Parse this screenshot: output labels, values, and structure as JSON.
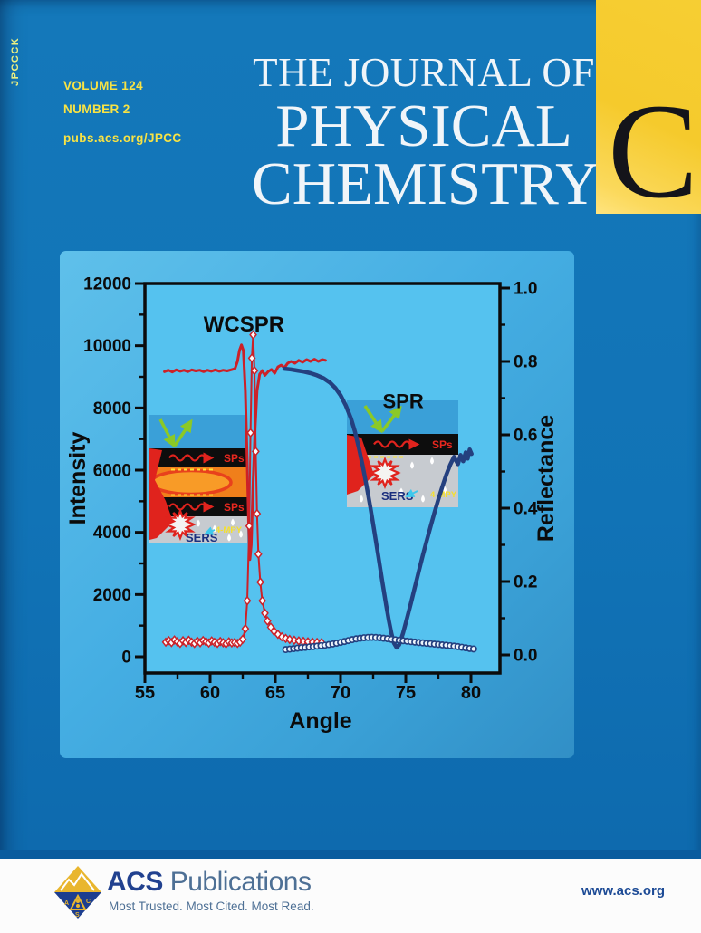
{
  "cover": {
    "spine_code": "JPCCCK",
    "volume": "VOLUME 124",
    "number": "NUMBER 2",
    "url": "pubs.acs.org/JPCC",
    "title_line1": "THE JOURNAL OF",
    "title_line2": "PHYSICAL",
    "title_line3": "CHEMISTRY",
    "edition_letter": "C"
  },
  "footer": {
    "brand_bold": "ACS",
    "brand_light": "Publications",
    "tagline": "Most Trusted. Most Cited. Most Read.",
    "website": "www.acs.org"
  },
  "colors": {
    "cover_blue": "#1173b6",
    "panel_blue": "#45aee3",
    "plot_blue": "#55c2ef",
    "accent_yellow": "#f8e344",
    "edition_gold": "#f5ca2c",
    "wcspr_red": "#cc2128",
    "spr_navy": "#24407f"
  },
  "chart_data": {
    "type": "line",
    "title": "",
    "xlabel": "Angle",
    "ylabel_left": "Intensity",
    "ylabel_right": "Reflectance",
    "legend": "none",
    "grid": false,
    "axes": {
      "x": {
        "min": 55,
        "max": 82.2,
        "major": [
          55,
          60,
          65,
          70,
          75,
          80
        ],
        "labels": [
          "55",
          "60",
          "65",
          "70",
          "75",
          "80"
        ],
        "minor": [
          57.5,
          62.5,
          67.5,
          72.5,
          77.5
        ]
      },
      "left": {
        "min": 0,
        "max": 12000,
        "major": [
          0,
          2000,
          4000,
          6000,
          8000,
          10000,
          12000
        ],
        "labels": [
          "0",
          "2000",
          "4000",
          "6000",
          "8000",
          "10000",
          "12000"
        ],
        "minor": [
          1000,
          3000,
          5000,
          7000,
          9000,
          11000
        ]
      },
      "right": {
        "min": 0,
        "max": 1.0,
        "major": [
          0,
          0.2,
          0.4,
          0.6,
          0.8,
          1
        ],
        "labels": [
          "0.0",
          "0.2",
          "0.4",
          "0.6",
          "0.8",
          "1.0"
        ],
        "minor": [
          0.1,
          0.3,
          0.5,
          0.7,
          0.9
        ]
      }
    },
    "series": [
      {
        "id": "wcspr_reflectance",
        "name": "WCSPR reflectance",
        "axis": "right",
        "style": "line",
        "color": "#cc2128",
        "width": 3,
        "xs": [
          56.5,
          56.8,
          57.1,
          57.4,
          57.7,
          58.0,
          58.3,
          58.6,
          58.9,
          59.2,
          59.5,
          59.8,
          60.1,
          60.4,
          60.7,
          61.0,
          61.3,
          61.6,
          61.9,
          62.1,
          62.25,
          62.4,
          62.55,
          62.7,
          62.85,
          62.95,
          63.05,
          63.15,
          63.3,
          63.45,
          63.6,
          63.8,
          64.0,
          64.2,
          64.45,
          64.7,
          64.95,
          65.2,
          65.45,
          65.7,
          65.95,
          66.2,
          66.5,
          66.8,
          67.1,
          67.4,
          67.7,
          68.0,
          68.3,
          68.6,
          68.85
        ],
        "ys": [
          0.772,
          0.776,
          0.771,
          0.777,
          0.773,
          0.776,
          0.772,
          0.777,
          0.774,
          0.776,
          0.772,
          0.776,
          0.773,
          0.777,
          0.773,
          0.776,
          0.774,
          0.777,
          0.78,
          0.8,
          0.83,
          0.845,
          0.83,
          0.72,
          0.52,
          0.36,
          0.26,
          0.3,
          0.47,
          0.62,
          0.72,
          0.765,
          0.775,
          0.762,
          0.772,
          0.778,
          0.768,
          0.785,
          0.79,
          0.783,
          0.795,
          0.8,
          0.795,
          0.803,
          0.798,
          0.805,
          0.8,
          0.806,
          0.8,
          0.805,
          0.803
        ]
      },
      {
        "id": "wcspr_sers_intensity",
        "name": "WCSPR SERS intensity",
        "axis": "left",
        "style": "line",
        "marker": "diamond",
        "color": "#cc2128",
        "width": 2,
        "xs": [
          56.6,
          56.82,
          57.04,
          57.26,
          57.48,
          57.7,
          57.92,
          58.14,
          58.36,
          58.58,
          58.8,
          59.02,
          59.24,
          59.46,
          59.68,
          59.9,
          60.12,
          60.34,
          60.56,
          60.78,
          61.0,
          61.22,
          61.44,
          61.66,
          61.88,
          62.1,
          62.3,
          62.5,
          62.7,
          62.85,
          63.0,
          63.1,
          63.2,
          63.3,
          63.4,
          63.5,
          63.6,
          63.7,
          63.85,
          64.0,
          64.2,
          64.4,
          64.65,
          64.9,
          65.2,
          65.5,
          65.8,
          66.1,
          66.45,
          66.8,
          67.15,
          67.5,
          67.85,
          68.2,
          68.55
        ],
        "ys": [
          470,
          520,
          455,
          540,
          480,
          430,
          515,
          460,
          530,
          470,
          425,
          500,
          450,
          520,
          485,
          440,
          510,
          465,
          430,
          490,
          450,
          415,
          480,
          445,
          460,
          430,
          470,
          560,
          900,
          1800,
          4200,
          7200,
          9600,
          10350,
          9200,
          6600,
          4600,
          3300,
          2400,
          1800,
          1400,
          1150,
          950,
          820,
          720,
          640,
          590,
          555,
          530,
          510,
          495,
          480,
          470,
          460,
          455
        ]
      },
      {
        "id": "spr_reflectance",
        "name": "SPR reflectance",
        "axis": "right",
        "style": "line",
        "color": "#24407f",
        "width": 4.5,
        "xs": [
          65.7,
          66.2,
          66.7,
          67.2,
          67.7,
          68.2,
          68.7,
          69.2,
          69.6,
          70.0,
          70.4,
          70.8,
          71.1,
          71.4,
          71.7,
          72.0,
          72.3,
          72.6,
          72.9,
          73.2,
          73.5,
          73.7,
          73.9,
          74.1,
          74.3,
          74.5,
          74.8,
          75.1,
          75.4,
          75.7,
          76.0,
          76.3,
          76.6,
          76.9,
          77.2,
          77.5,
          77.8,
          78.1,
          78.4,
          78.7,
          79.0,
          79.2,
          79.4,
          79.6,
          79.75,
          79.9,
          80.05
        ],
        "ys": [
          0.78,
          0.778,
          0.775,
          0.772,
          0.768,
          0.762,
          0.754,
          0.742,
          0.728,
          0.708,
          0.68,
          0.645,
          0.61,
          0.565,
          0.515,
          0.46,
          0.4,
          0.335,
          0.268,
          0.2,
          0.135,
          0.094,
          0.058,
          0.032,
          0.02,
          0.028,
          0.06,
          0.1,
          0.142,
          0.185,
          0.228,
          0.27,
          0.31,
          0.35,
          0.388,
          0.424,
          0.458,
          0.49,
          0.518,
          0.54,
          0.52,
          0.545,
          0.528,
          0.552,
          0.535,
          0.56,
          0.548
        ]
      },
      {
        "id": "spr_sers_intensity",
        "name": "SPR SERS intensity",
        "axis": "left",
        "style": "line",
        "marker": "circle",
        "color": "#24407f",
        "width": 1.5,
        "xs": [
          65.8,
          66.1,
          66.4,
          66.7,
          67.0,
          67.3,
          67.6,
          67.9,
          68.2,
          68.5,
          68.8,
          69.1,
          69.4,
          69.7,
          70.0,
          70.3,
          70.6,
          70.9,
          71.2,
          71.5,
          71.8,
          72.1,
          72.4,
          72.7,
          73.0,
          73.3,
          73.6,
          73.9,
          74.2,
          74.5,
          74.8,
          75.1,
          75.4,
          75.7,
          76.0,
          76.3,
          76.6,
          76.9,
          77.2,
          77.5,
          77.8,
          78.1,
          78.4,
          78.7,
          79.0,
          79.3,
          79.6,
          79.9,
          80.2
        ],
        "ys": [
          230,
          245,
          260,
          275,
          290,
          300,
          315,
          325,
          340,
          355,
          370,
          390,
          410,
          435,
          460,
          490,
          520,
          550,
          575,
          595,
          610,
          620,
          625,
          620,
          610,
          595,
          580,
          560,
          545,
          530,
          515,
          500,
          485,
          470,
          455,
          445,
          430,
          420,
          405,
          395,
          380,
          370,
          355,
          340,
          325,
          305,
          285,
          265,
          250
        ]
      }
    ],
    "annotations": [
      {
        "text": "WCSPR",
        "x": 62.6,
        "y": 10450,
        "font": 24
      },
      {
        "text": "SPR",
        "x": 74.8,
        "y": 8000,
        "font": 22
      }
    ],
    "insets": {
      "wcspr": {
        "sps_top": "SPs",
        "sps_bottom": "SPs",
        "sers": "SERS",
        "analyte": "4-MPY"
      },
      "spr": {
        "sps": "SPs",
        "sers": "SERS",
        "analyte": "4-MPY"
      }
    }
  }
}
